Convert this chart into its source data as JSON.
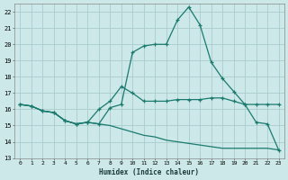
{
  "xlabel": "Humidex (Indice chaleur)",
  "background_color": "#cce8e8",
  "grid_color": "#aacccc",
  "line_color": "#1a7a6e",
  "xlim": [
    -0.5,
    23.5
  ],
  "ylim": [
    13,
    22.5
  ],
  "yticks": [
    13,
    14,
    15,
    16,
    17,
    18,
    19,
    20,
    21,
    22
  ],
  "xticks": [
    0,
    1,
    2,
    3,
    4,
    5,
    6,
    7,
    8,
    9,
    10,
    11,
    12,
    13,
    14,
    15,
    16,
    17,
    18,
    19,
    20,
    21,
    22,
    23
  ],
  "line1_x": [
    0,
    1,
    2,
    3,
    4,
    5,
    6,
    7,
    8,
    9,
    10,
    11,
    12,
    13,
    14,
    15,
    16,
    17,
    18,
    19,
    20,
    21,
    22,
    23
  ],
  "line1_y": [
    16.3,
    16.2,
    15.9,
    15.8,
    15.3,
    15.1,
    15.2,
    15.1,
    16.1,
    16.3,
    19.5,
    19.9,
    20.0,
    20.0,
    21.5,
    22.3,
    21.2,
    18.9,
    17.9,
    17.1,
    16.3,
    15.2,
    15.1,
    13.5
  ],
  "line2_x": [
    0,
    1,
    2,
    3,
    4,
    5,
    6,
    7,
    8,
    9,
    10,
    11,
    12,
    13,
    14,
    15,
    16,
    17,
    18,
    19,
    20,
    21,
    22,
    23
  ],
  "line2_y": [
    16.3,
    16.2,
    15.9,
    15.8,
    15.3,
    15.1,
    15.2,
    16.0,
    16.5,
    17.4,
    17.0,
    16.5,
    16.5,
    16.5,
    16.6,
    16.6,
    16.6,
    16.7,
    16.7,
    16.5,
    16.3,
    16.3,
    16.3,
    16.3
  ],
  "line3_x": [
    0,
    1,
    2,
    3,
    4,
    5,
    6,
    7,
    8,
    9,
    10,
    11,
    12,
    13,
    14,
    15,
    16,
    17,
    18,
    19,
    20,
    21,
    22,
    23
  ],
  "line3_y": [
    16.3,
    16.2,
    15.9,
    15.8,
    15.3,
    15.1,
    15.2,
    15.1,
    15.0,
    14.8,
    14.6,
    14.4,
    14.3,
    14.1,
    14.0,
    13.9,
    13.8,
    13.7,
    13.6,
    13.6,
    13.6,
    13.6,
    13.6,
    13.5
  ]
}
